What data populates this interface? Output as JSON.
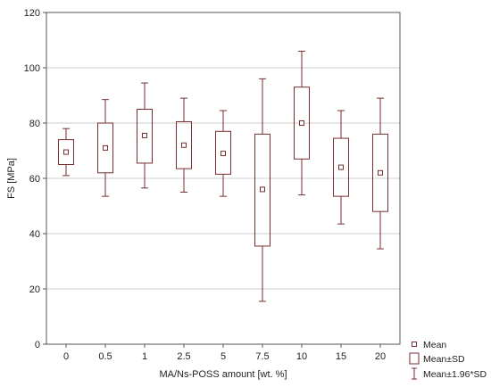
{
  "chart_data": {
    "type": "boxplot",
    "xlabel": "MA/Ns-POSS amount [wt. %]",
    "ylabel": "FS [MPa]",
    "ylim": [
      0,
      120
    ],
    "yticks": [
      0,
      20,
      40,
      60,
      80,
      100,
      120
    ],
    "grid": "horizontal",
    "legend_position": "bottom-right",
    "colors": {
      "box": "#7a2e2e",
      "grid": "#cccccc",
      "axis": "#555555"
    },
    "categories": [
      "0",
      "0.5",
      "1",
      "2.5",
      "5",
      "7.5",
      "10",
      "15",
      "20"
    ],
    "series": [
      {
        "mean": 69.5,
        "sd_low": 65,
        "sd_high": 74,
        "ci_low": 61,
        "ci_high": 78
      },
      {
        "mean": 71,
        "sd_low": 62,
        "sd_high": 80,
        "ci_low": 53.5,
        "ci_high": 88.5
      },
      {
        "mean": 75.5,
        "sd_low": 65.5,
        "sd_high": 85,
        "ci_low": 56.5,
        "ci_high": 94.5
      },
      {
        "mean": 72,
        "sd_low": 63.5,
        "sd_high": 80.5,
        "ci_low": 55,
        "ci_high": 89
      },
      {
        "mean": 69,
        "sd_low": 61.5,
        "sd_high": 77,
        "ci_low": 53.5,
        "ci_high": 84.5
      },
      {
        "mean": 56,
        "sd_low": 35.5,
        "sd_high": 76,
        "ci_low": 15.5,
        "ci_high": 96
      },
      {
        "mean": 80,
        "sd_low": 67,
        "sd_high": 93,
        "ci_low": 54,
        "ci_high": 106
      },
      {
        "mean": 64,
        "sd_low": 53.5,
        "sd_high": 74.5,
        "ci_low": 43.5,
        "ci_high": 84.5
      },
      {
        "mean": 62,
        "sd_low": 48,
        "sd_high": 76,
        "ci_low": 34.5,
        "ci_high": 89
      }
    ],
    "legend": [
      {
        "key": "mean",
        "label": "Mean"
      },
      {
        "key": "sd",
        "label": "Mean±SD"
      },
      {
        "key": "ci",
        "label": "Mean±1.96*SD"
      }
    ]
  }
}
